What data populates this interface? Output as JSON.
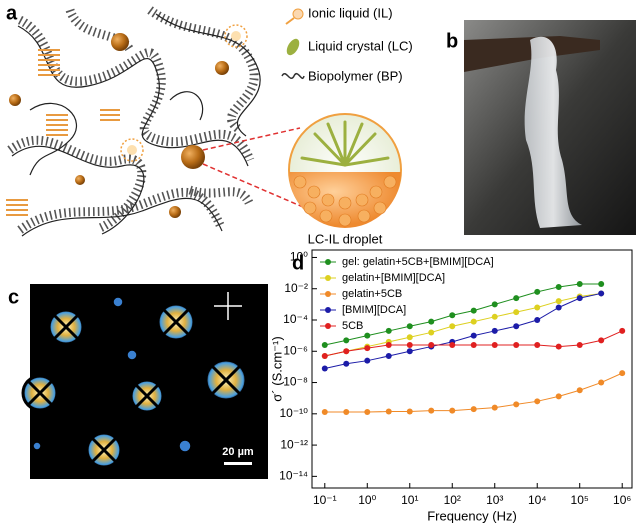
{
  "panel_a": {
    "label": "a",
    "legend": [
      "Ionic liquid (IL)",
      "Liquid crystal (LC)",
      "Biopolymer (BP)"
    ],
    "droplet_label": "LC-IL droplet"
  },
  "panel_b": {
    "label": "b"
  },
  "panel_c": {
    "label": "c",
    "scale_bar": "20 µm"
  },
  "chart_data": {
    "type": "line",
    "panel_label": "d",
    "x_label": "Frequency (Hz)",
    "y_label": "σ´ (S.cm⁻¹)",
    "log_x": true,
    "log_y": true,
    "legend": "upper left",
    "x": [
      0.1,
      0.32,
      1,
      3.2,
      10,
      32,
      100,
      320,
      1000,
      3200,
      10000,
      32000,
      100000,
      320000,
      1000000
    ],
    "xlim": [
      0.05,
      1700000
    ],
    "xticks": [
      {
        "value": 0.1,
        "label": "10⁻¹"
      },
      {
        "value": 1,
        "label": "10⁰"
      },
      {
        "value": 10,
        "label": "10¹"
      },
      {
        "value": 100,
        "label": "10²"
      },
      {
        "value": 1000,
        "label": "10³"
      },
      {
        "value": 10000,
        "label": "10⁴"
      },
      {
        "value": 100000,
        "label": "10⁵"
      },
      {
        "value": 1000000,
        "label": "10⁶"
      }
    ],
    "ylim": [
      1.8e-15,
      3
    ],
    "yticks": [
      {
        "value": 1,
        "label": "10⁰"
      },
      {
        "value": 0.01,
        "label": "10⁻²"
      },
      {
        "value": 0.0001,
        "label": "10⁻⁴"
      },
      {
        "value": 1e-06,
        "label": "10⁻⁶"
      },
      {
        "value": 1e-08,
        "label": "10⁻⁸"
      },
      {
        "value": 1e-10,
        "label": "10⁻¹⁰"
      },
      {
        "value": 1e-12,
        "label": "10⁻¹²"
      },
      {
        "value": 1e-14,
        "label": "10⁻¹⁴"
      }
    ],
    "series": [
      {
        "name": "gel: gelatin+5CB+[BMIM][DCA]",
        "color": "#1f8f1f",
        "values": [
          2.5e-06,
          5e-06,
          1e-05,
          2e-05,
          4e-05,
          7.9e-05,
          0.0002,
          0.0004,
          0.001,
          0.0025,
          0.0063,
          0.013,
          0.02,
          0.02,
          null
        ]
      },
      {
        "name": "gelatin+[BMIM][DCA]",
        "color": "#ddd020",
        "values": [
          5e-07,
          1e-06,
          2e-06,
          4e-06,
          7.9e-06,
          1.6e-05,
          4e-05,
          7.9e-05,
          0.00016,
          0.00032,
          0.00063,
          0.0016,
          0.0032,
          0.005,
          null
        ]
      },
      {
        "name": "gelatin+5CB",
        "color": "#f08a28",
        "values": [
          1.3e-10,
          1.3e-10,
          1.3e-10,
          1.4e-10,
          1.4e-10,
          1.6e-10,
          1.6e-10,
          2e-10,
          2.5e-10,
          4e-10,
          6.3e-10,
          1.3e-09,
          3.2e-09,
          1e-08,
          4e-08
        ]
      },
      {
        "name": "[BMIM][DCA]",
        "color": "#1c1ca8",
        "values": [
          7.9e-08,
          1.6e-07,
          2.5e-07,
          5e-07,
          1e-06,
          2e-06,
          4e-06,
          1e-05,
          2e-05,
          4e-05,
          0.0001,
          0.00063,
          0.0025,
          0.005,
          null
        ]
      },
      {
        "name": "5CB",
        "color": "#e02020",
        "values": [
          5e-07,
          1e-06,
          1.6e-06,
          2.5e-06,
          2.5e-06,
          2.5e-06,
          2.5e-06,
          2.5e-06,
          2.5e-06,
          2.5e-06,
          2.5e-06,
          2e-06,
          2.5e-06,
          5e-06,
          2e-05
        ]
      }
    ]
  }
}
